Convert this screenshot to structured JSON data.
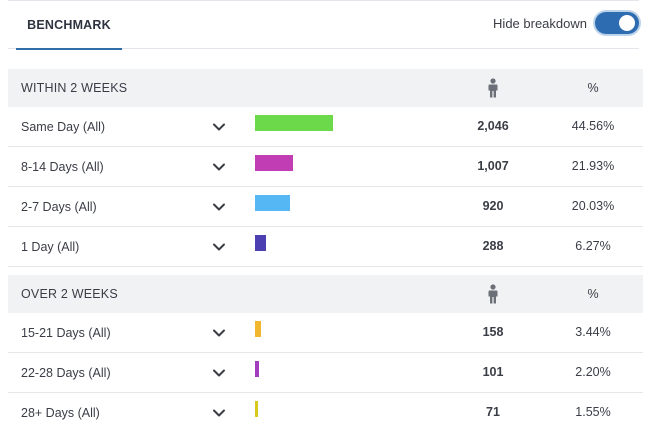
{
  "tabs": [
    {
      "label": "BENCHMARK",
      "active": true
    }
  ],
  "toggle": {
    "label": "Hide breakdown",
    "on": true
  },
  "colors": {
    "accent": "#2f6da8",
    "toggle": "#2d6cb0"
  },
  "sections": [
    {
      "title": "WITHIN 2 WEEKS",
      "count_icon": "person-icon",
      "pct_header": "%",
      "rows": [
        {
          "label": "Same Day (All)",
          "count": "2,046",
          "pct": "44.56%",
          "share": 0.4456,
          "color": "#6cd94a"
        },
        {
          "label": "8-14 Days (All)",
          "count": "1,007",
          "pct": "21.93%",
          "share": 0.2193,
          "color": "#c03db3"
        },
        {
          "label": "2-7 Days (All)",
          "count": "920",
          "pct": "20.03%",
          "share": 0.2003,
          "color": "#55b8f5"
        },
        {
          "label": "1 Day (All)",
          "count": "288",
          "pct": "6.27%",
          "share": 0.0627,
          "color": "#4c3fb1"
        }
      ]
    },
    {
      "title": "OVER 2 WEEKS",
      "count_icon": "person-icon",
      "pct_header": "%",
      "rows": [
        {
          "label": "15-21 Days (All)",
          "count": "158",
          "pct": "3.44%",
          "share": 0.0344,
          "color": "#f1b72e"
        },
        {
          "label": "22-28 Days (All)",
          "count": "101",
          "pct": "2.20%",
          "share": 0.022,
          "color": "#a33dc0"
        },
        {
          "label": "28+ Days (All)",
          "count": "71",
          "pct": "1.55%",
          "share": 0.0155,
          "color": "#d8c91c"
        }
      ]
    }
  ]
}
